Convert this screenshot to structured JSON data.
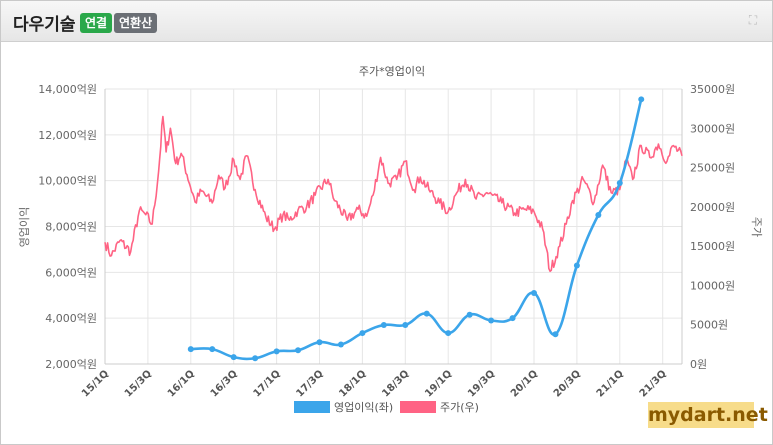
{
  "header": {
    "company": "다우기술",
    "badge_connected": "연결",
    "badge_annual": "연환산"
  },
  "watermark": "mydart.net",
  "chart_data": {
    "type": "line",
    "title": "주가*영업이익",
    "ylabel_left": "영업이익",
    "ylabel_right": "주가",
    "left_axis": {
      "min": 2000,
      "max": 14000,
      "ticks": [
        2000,
        4000,
        6000,
        8000,
        10000,
        12000,
        14000
      ],
      "unit": "억원"
    },
    "right_axis": {
      "min": 0,
      "max": 35000,
      "ticks": [
        0,
        5000,
        10000,
        15000,
        20000,
        25000,
        30000,
        35000
      ],
      "unit": "원"
    },
    "x_labels": [
      "15/1Q",
      "15/3Q",
      "16/1Q",
      "16/3Q",
      "17/1Q",
      "17/3Q",
      "18/1Q",
      "18/3Q",
      "19/1Q",
      "19/3Q",
      "20/1Q",
      "20/3Q",
      "21/1Q",
      "21/3Q"
    ],
    "x_range": [
      0,
      26.9
    ],
    "series": [
      {
        "name": "영업이익(좌)",
        "color": "#3ba5ea",
        "axis": "left",
        "points": [
          [
            4,
            2650
          ],
          [
            5,
            2650
          ],
          [
            6,
            2300
          ],
          [
            7,
            2250
          ],
          [
            8,
            2550
          ],
          [
            9,
            2600
          ],
          [
            10,
            2950
          ],
          [
            11,
            2850
          ],
          [
            12,
            3350
          ],
          [
            13,
            3700
          ],
          [
            14,
            3700
          ],
          [
            15,
            4200
          ],
          [
            16,
            3350
          ],
          [
            17,
            4150
          ],
          [
            18,
            3900
          ],
          [
            19,
            4000
          ],
          [
            20,
            5100
          ],
          [
            21,
            3300
          ],
          [
            22,
            6300
          ],
          [
            23,
            8500
          ],
          [
            24,
            9900
          ],
          [
            25,
            13550
          ]
        ]
      },
      {
        "name": "주가(우)",
        "color": "#ff6384",
        "axis": "right",
        "anchors": [
          [
            0,
            15500
          ],
          [
            0.3,
            13800
          ],
          [
            0.7,
            15700
          ],
          [
            1.2,
            14300
          ],
          [
            1.6,
            19500
          ],
          [
            1.9,
            19000
          ],
          [
            2.2,
            17800
          ],
          [
            2.5,
            24500
          ],
          [
            2.7,
            31500
          ],
          [
            2.85,
            27000
          ],
          [
            3.05,
            30000
          ],
          [
            3.3,
            25500
          ],
          [
            3.55,
            26800
          ],
          [
            4.2,
            20600
          ],
          [
            4.5,
            22000
          ],
          [
            5.0,
            20500
          ],
          [
            5.3,
            24000
          ],
          [
            5.6,
            22400
          ],
          [
            6.0,
            26000
          ],
          [
            6.3,
            23500
          ],
          [
            6.6,
            26500
          ],
          [
            7.0,
            22200
          ],
          [
            7.5,
            18700
          ],
          [
            7.9,
            17200
          ],
          [
            8.3,
            19000
          ],
          [
            8.6,
            18300
          ],
          [
            9.0,
            19600
          ],
          [
            9.4,
            20000
          ],
          [
            9.8,
            21500
          ],
          [
            10.4,
            23500
          ],
          [
            10.7,
            20800
          ],
          [
            11.3,
            18300
          ],
          [
            11.8,
            19700
          ],
          [
            12.2,
            18800
          ],
          [
            12.5,
            21500
          ],
          [
            12.85,
            26300
          ],
          [
            13.2,
            23000
          ],
          [
            13.6,
            23500
          ],
          [
            14.0,
            25800
          ],
          [
            14.4,
            22200
          ],
          [
            14.7,
            23800
          ],
          [
            15.1,
            22200
          ],
          [
            15.6,
            20500
          ],
          [
            16.0,
            19400
          ],
          [
            16.4,
            21800
          ],
          [
            16.8,
            23500
          ],
          [
            17.3,
            21000
          ],
          [
            17.8,
            21800
          ],
          [
            18.5,
            20500
          ],
          [
            19.1,
            19200
          ],
          [
            19.6,
            19700
          ],
          [
            20.0,
            19400
          ],
          [
            20.4,
            17200
          ],
          [
            20.75,
            11800
          ],
          [
            21.2,
            15000
          ],
          [
            21.5,
            17800
          ],
          [
            21.8,
            20800
          ],
          [
            22.3,
            23500
          ],
          [
            22.8,
            20600
          ],
          [
            23.2,
            25300
          ],
          [
            23.6,
            21800
          ],
          [
            24.0,
            22200
          ],
          [
            24.3,
            26000
          ],
          [
            24.6,
            23500
          ],
          [
            25.0,
            27800
          ],
          [
            25.4,
            26300
          ],
          [
            25.8,
            28000
          ],
          [
            26.2,
            25800
          ],
          [
            26.5,
            27800
          ],
          [
            26.9,
            26500
          ]
        ]
      }
    ],
    "legend_position": "bottom",
    "grid": true
  }
}
